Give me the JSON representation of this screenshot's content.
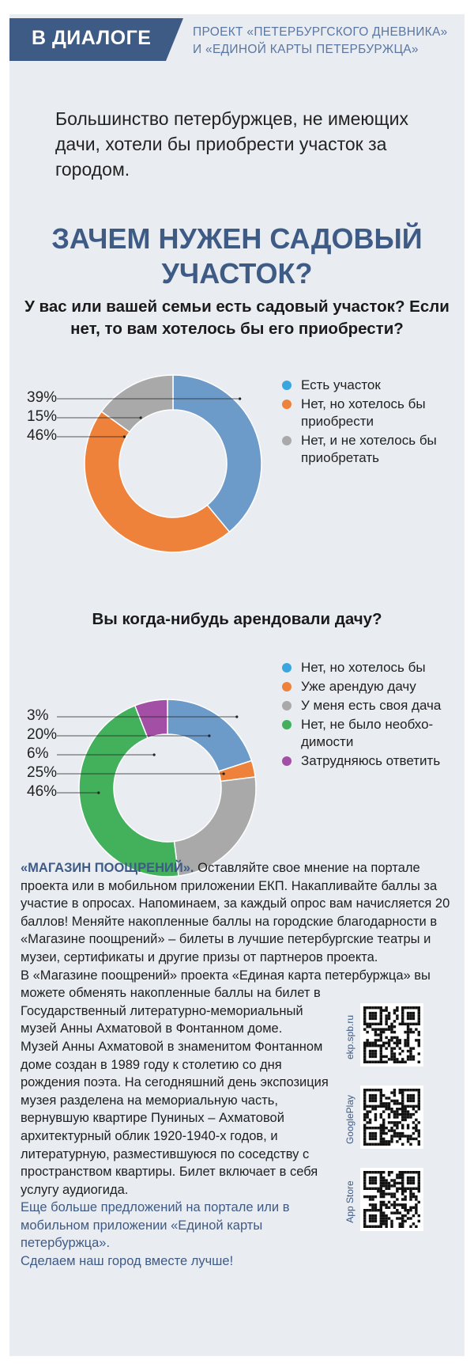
{
  "header": {
    "tag": "В ДИАЛОГЕ",
    "project_line1": "ПРОЕКТ «ПЕТЕРБУРГСКОГО ДНЕВНИКА»",
    "project_line2": "И «ЕДИНОЙ КАРТЫ ПЕТЕРБУРЖЦА»"
  },
  "lead": "Большинство петербуржцев, не имеющих дачи, хотели бы приобрести участок за городом.",
  "title_line1": "ЗАЧЕМ НУЖЕН САДОВЫЙ",
  "title_line2": "УЧАСТОК?",
  "chart_data": [
    {
      "type": "pie",
      "title": "У вас или вашей семьи есть садовый участок? Если нет, то вам хотелось бы его приобрести?",
      "title_line1": "У вас или вашей семьи есть садовый участок? Если",
      "title_line2": "нет, то вам хотелось бы его приобрести?",
      "donut": true,
      "legend_placement": "right",
      "categories": [
        "Есть участок",
        "Нет, но хотелось бы приобрести",
        "Нет, и не хотелось бы приобретать"
      ],
      "values": [
        39,
        46,
        15
      ],
      "labels": [
        "39%",
        "46%",
        "15%"
      ],
      "colors": [
        "#6c9ac9",
        "#ee823a",
        "#a9a9a9"
      ]
    },
    {
      "type": "pie",
      "title": "Вы когда-нибудь арендовали дачу?",
      "donut": true,
      "legend_placement": "right",
      "categories": [
        "Нет, но хотелось бы",
        "Уже арендую дачу",
        "У меня есть своя дача",
        "Нет, не было необходимости",
        "Затрудняюсь ответить"
      ],
      "values": [
        20,
        3,
        25,
        46,
        6
      ],
      "labels": [
        "20%",
        "3%",
        "25%",
        "46%",
        "6%"
      ],
      "colors": [
        "#6c9ac9",
        "#ee823a",
        "#a9a9a9",
        "#43b05c",
        "#a44fa6"
      ]
    }
  ],
  "legend1": [
    {
      "text": "Есть участок",
      "color": "#3aa6e0"
    },
    {
      "text": "Нет, но хотелось бы приобрести",
      "color": "#ee823a"
    },
    {
      "text": "Нет, и не хотелось бы приобретать",
      "color": "#a9a9a9"
    }
  ],
  "legend2": [
    {
      "text": "Нет, но хотелось бы",
      "color": "#3aa6e0"
    },
    {
      "text": "Уже арендую дачу",
      "color": "#ee823a"
    },
    {
      "text": "У меня есть своя дача",
      "color": "#a9a9a9"
    },
    {
      "text": "Нет, не было необхо-димости",
      "color": "#43b05c"
    },
    {
      "text": "Затрудняюсь ответить",
      "color": "#a44fa6"
    }
  ],
  "chart1_label_order": [
    "39%",
    "15%",
    "46%"
  ],
  "chart2_label_order": [
    "3%",
    "20%",
    "6%",
    "25%",
    "46%"
  ],
  "footer": {
    "store_name": "«МАГАЗИН ПООЩРЕНИЙ».",
    "p1": "Оставляйте свое мнение на портале проекта или в мобильном приложении ЕКП. Накапливайте баллы за участие в опросах. Напоминаем, за каждый опрос вам начисляется 20 баллов! Меняйте накопленные баллы на городские благодарности в «Магазине поощрений» – билеты в лучшие петербургские театры и музеи, сертификаты и другие призы от партнеров проекта.",
    "p2": "В «Магазине поощрений» проекта «Единая карта петербуржца» вы",
    "p3": "можете обменять накопленные баллы на билет в Государственный литературно-мемориальный музей Анны Ахматовой в Фонтанном доме.",
    "p4": "Музей Анны Ахматовой в знаменитом Фонтанном доме создан в 1989 году к столетию со дня рождения поэта. На сегодняшний день экспозиция музея разделена на мемориальную часть, вернувшую квартире Пуниных – Ахматовой архитектурный облик 1920-1940-х годов, и литературную, разместившуюся по соседству с пространством квартиры. Билет включает в себя услугу аудиогида.",
    "p5": "Еще больше предложений на портале или в мобильном приложении «Единой карты петербуржца».",
    "p6": "Сделаем наш город вместе лучше!"
  },
  "qr": [
    {
      "label": "ekp.spb.ru"
    },
    {
      "label": "GooglePlay"
    },
    {
      "label": "App Store"
    }
  ]
}
